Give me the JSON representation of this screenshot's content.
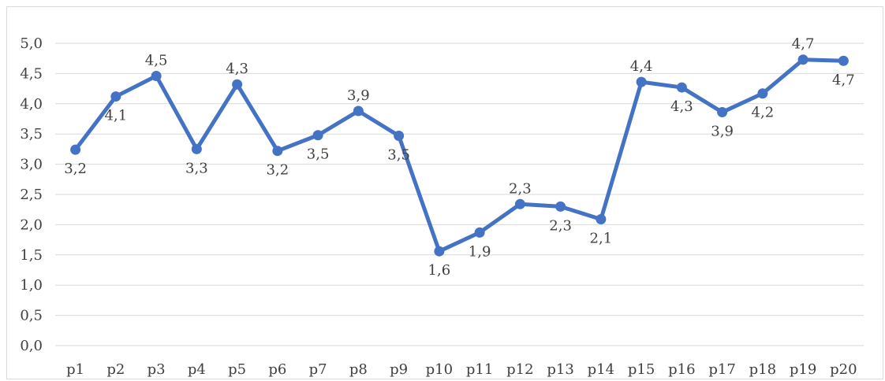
{
  "chart_data": {
    "type": "line",
    "title": "",
    "xlabel": "",
    "ylabel": "",
    "categories": [
      "p1",
      "p2",
      "p3",
      "p4",
      "p5",
      "p6",
      "p7",
      "p8",
      "p9",
      "p10",
      "p11",
      "p12",
      "p13",
      "p14",
      "p15",
      "p16",
      "p17",
      "p18",
      "p19",
      "p20"
    ],
    "series": [
      {
        "values": [
          3.24,
          4.12,
          4.46,
          3.25,
          4.32,
          3.22,
          3.48,
          3.88,
          3.47,
          1.56,
          1.87,
          2.34,
          2.3,
          2.09,
          4.36,
          4.27,
          3.86,
          4.17,
          4.73,
          4.71
        ],
        "labels": [
          "3,2",
          "4,1",
          "4,5",
          "3,3",
          "4,3",
          "3,2",
          "3,5",
          "3,9",
          "3,5",
          "1,6",
          "1,9",
          "2,3",
          "2,3",
          "2,1",
          "4,4",
          "4,3",
          "3,9",
          "4,2",
          "4,7",
          "4,7"
        ],
        "color": "#4472c4"
      }
    ],
    "ylim": [
      0,
      5
    ],
    "yticks": [
      "0,0",
      "0,5",
      "1,0",
      "1,5",
      "2,0",
      "2,5",
      "3,0",
      "3,5",
      "4,0",
      "4,5",
      "5,0"
    ],
    "grid": true,
    "legend": "none"
  }
}
